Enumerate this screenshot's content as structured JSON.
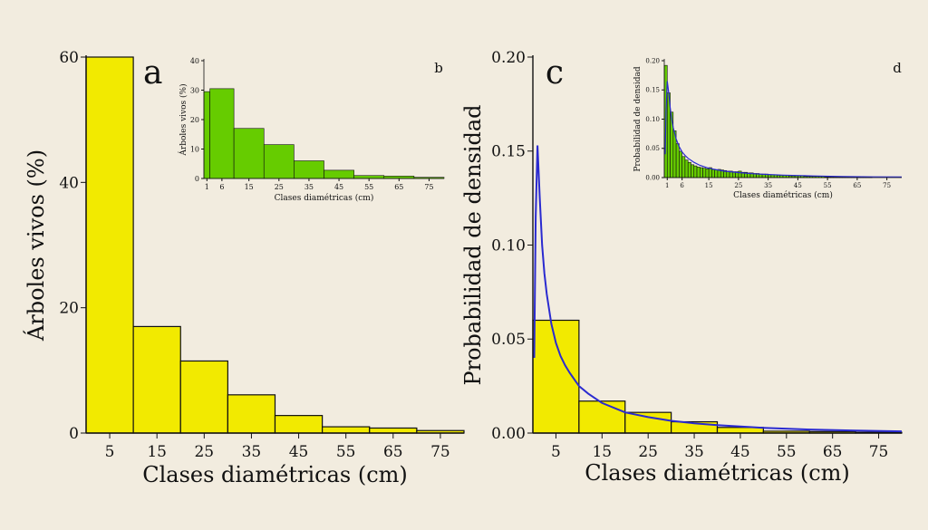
{
  "chart_data": [
    {
      "panel": "a",
      "type": "bar",
      "xlabel": "Clases diamétricas (cm)",
      "ylabel": "Árboles vivos (%)",
      "xlim": [
        0,
        80
      ],
      "ylim": [
        0,
        60
      ],
      "xticks": [
        5,
        15,
        25,
        35,
        45,
        55,
        65,
        75
      ],
      "yticks": [
        0,
        20,
        40,
        60
      ],
      "bins": [
        [
          0,
          10
        ],
        [
          10,
          20
        ],
        [
          20,
          30
        ],
        [
          30,
          40
        ],
        [
          40,
          50
        ],
        [
          50,
          60
        ],
        [
          60,
          70
        ],
        [
          70,
          80
        ]
      ],
      "values": [
        60.2,
        17.0,
        11.5,
        6.1,
        2.8,
        1.0,
        0.8,
        0.4
      ],
      "color": "#f2ea00"
    },
    {
      "panel": "b",
      "type": "bar",
      "xlabel": "Clases diamétricas (cm)",
      "ylabel": "Árboles vivos (%)",
      "xlim": [
        0,
        80
      ],
      "ylim": [
        0,
        40
      ],
      "xticks": [
        1,
        6,
        15,
        25,
        35,
        45,
        55,
        65,
        75
      ],
      "yticks": [
        0,
        10,
        20,
        30,
        40
      ],
      "bins": [
        [
          0,
          2
        ],
        [
          2,
          10
        ],
        [
          10,
          20
        ],
        [
          20,
          30
        ],
        [
          30,
          40
        ],
        [
          40,
          50
        ],
        [
          50,
          60
        ],
        [
          60,
          70
        ],
        [
          70,
          80
        ]
      ],
      "values": [
        29.5,
        30.5,
        17.0,
        11.5,
        6.0,
        2.8,
        1.0,
        0.8,
        0.4
      ],
      "color": "#66cc00"
    },
    {
      "panel": "c",
      "type": "bar",
      "xlabel": "Clases diamétricas (cm)",
      "ylabel": "Probabilidad de densidad",
      "xlim": [
        0,
        80
      ],
      "ylim": [
        0,
        0.2
      ],
      "xticks": [
        5,
        15,
        25,
        35,
        45,
        55,
        65,
        75
      ],
      "yticks": [
        0.0,
        0.05,
        0.1,
        0.15,
        0.2
      ],
      "tick_decimals": 2,
      "bins": [
        [
          0,
          10
        ],
        [
          10,
          20
        ],
        [
          20,
          30
        ],
        [
          30,
          40
        ],
        [
          40,
          50
        ],
        [
          50,
          60
        ],
        [
          60,
          70
        ],
        [
          70,
          80
        ]
      ],
      "values": [
        0.06,
        0.017,
        0.011,
        0.006,
        0.003,
        0.001,
        0.0008,
        0.0004
      ],
      "color": "#f2ea00",
      "curve": {
        "color": "#2a2ad0",
        "x": [
          0.3,
          0.6,
          1,
          1.5,
          2,
          2.5,
          3,
          4,
          5,
          6,
          7,
          8,
          10,
          12,
          15,
          20,
          25,
          30,
          35,
          40,
          50,
          60,
          70,
          80
        ],
        "y": [
          0.04,
          0.115,
          0.153,
          0.125,
          0.1,
          0.085,
          0.074,
          0.058,
          0.048,
          0.041,
          0.036,
          0.032,
          0.025,
          0.021,
          0.016,
          0.011,
          0.0085,
          0.0065,
          0.0052,
          0.0042,
          0.0028,
          0.0019,
          0.0013,
          0.0009
        ]
      }
    },
    {
      "panel": "d",
      "type": "bar",
      "xlabel": "Clases diamétricas (cm)",
      "ylabel": "Probabilidad de densidad",
      "xlim": [
        0,
        80
      ],
      "ylim": [
        0,
        0.2
      ],
      "xticks": [
        1,
        6,
        15,
        25,
        35,
        45,
        55,
        65,
        75
      ],
      "yticks": [
        0.0,
        0.05,
        0.1,
        0.15,
        0.2
      ],
      "tick_decimals": 2,
      "bin_start": 0,
      "bin_width": 1,
      "values": [
        0.192,
        0.145,
        0.112,
        0.08,
        0.058,
        0.045,
        0.036,
        0.03,
        0.026,
        0.022,
        0.02,
        0.018,
        0.017,
        0.016,
        0.015,
        0.017,
        0.014,
        0.013,
        0.014,
        0.013,
        0.012,
        0.011,
        0.011,
        0.01,
        0.01,
        0.011,
        0.009,
        0.009,
        0.008,
        0.008,
        0.007,
        0.007,
        0.006,
        0.006,
        0.006,
        0.005,
        0.005,
        0.005,
        0.004,
        0.004,
        0.004,
        0.004,
        0.003,
        0.003,
        0.003,
        0.003,
        0.003,
        0.002,
        0.002,
        0.002,
        0.002,
        0.002,
        0.002,
        0.002,
        0.001,
        0.001,
        0.001,
        0.001,
        0.001,
        0.001,
        0.001,
        0.001,
        0.001,
        0.001,
        0.001,
        0.001,
        0.001,
        0.001,
        0.001,
        0.0005
      ],
      "color": "#66cc00",
      "curve": {
        "color": "#2a2ad0",
        "x": [
          0.3,
          0.6,
          1,
          1.5,
          2,
          2.5,
          3,
          4,
          5,
          6,
          7,
          8,
          10,
          12,
          15,
          20,
          25,
          30,
          35,
          40,
          50,
          60,
          70,
          80
        ],
        "y": [
          0.04,
          0.115,
          0.165,
          0.145,
          0.12,
          0.1,
          0.086,
          0.066,
          0.053,
          0.044,
          0.038,
          0.033,
          0.026,
          0.021,
          0.016,
          0.011,
          0.0085,
          0.0065,
          0.0052,
          0.0042,
          0.0028,
          0.0019,
          0.0013,
          0.0009
        ]
      }
    }
  ]
}
